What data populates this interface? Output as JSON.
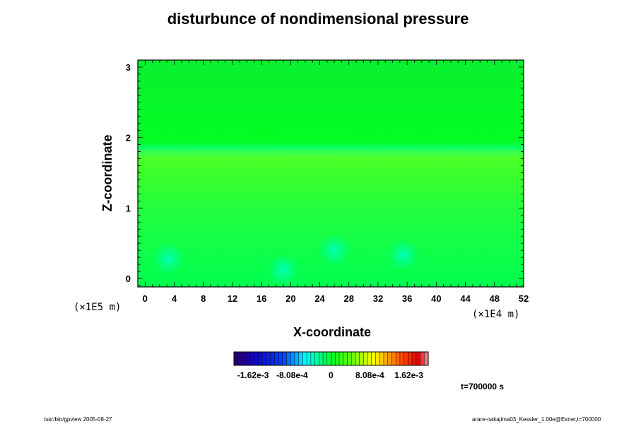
{
  "chart_data": {
    "type": "heatmap",
    "title": "disturbunce of nondimensional pressure",
    "xlabel": "X-coordinate",
    "ylabel": "Z-coordinate",
    "x_scale_note": "(×1E4 m)",
    "y_scale_note": "(×1E5 m)",
    "xlim": [
      -1,
      52
    ],
    "ylim": [
      -0.12,
      3.1
    ],
    "x_ticks": [
      "0",
      "4",
      "8",
      "12",
      "16",
      "20",
      "24",
      "28",
      "32",
      "36",
      "40",
      "44",
      "48",
      "52"
    ],
    "y_ticks": [
      "0",
      "1",
      "2",
      "3"
    ],
    "features": [
      {
        "type": "band",
        "z": 1.83,
        "value": -0.0004
      },
      {
        "type": "blob",
        "x": 3.2,
        "z": 0.28,
        "value": -0.0009
      },
      {
        "type": "blob",
        "x": 19.0,
        "z": 0.12,
        "value": -0.0011
      },
      {
        "type": "blob",
        "x": 26.0,
        "z": 0.4,
        "value": -0.0006
      },
      {
        "type": "blob",
        "x": 35.5,
        "z": 0.33,
        "value": -0.0008
      }
    ],
    "colorbar": {
      "range": [
        -0.00202,
        0.00202
      ],
      "tick_labels": [
        "-1.62e-3",
        "-8.08e-4",
        "0",
        "8.08e-4",
        "1.62e-3"
      ]
    }
  },
  "time_label": "t=700000 s",
  "footer_left": "/usr/bin/gpview 2005-08-27",
  "footer_right": "arare-nakajima03_Kessler_1.00e@Exner,t=700000"
}
